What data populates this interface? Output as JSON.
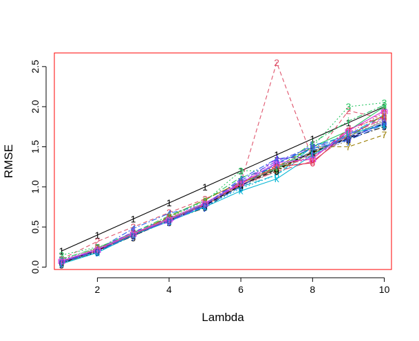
{
  "chart_data": {
    "type": "line",
    "title": "",
    "xlabel": "Lambda",
    "ylabel": "RMSE",
    "xlim": [
      0.8,
      10.2
    ],
    "ylim": [
      -0.03,
      2.67
    ],
    "xticks": [
      2,
      4,
      6,
      8,
      10
    ],
    "yticks": [
      0.0,
      0.5,
      1.0,
      1.5,
      2.0,
      2.5
    ],
    "xtick_labels": [
      "2",
      "4",
      "6",
      "8",
      "10"
    ],
    "ytick_labels": [
      "0.0",
      "0.5",
      "1.0",
      "1.5",
      "2.0",
      "2.5"
    ],
    "frame_color": "#ff0000",
    "grid": false,
    "legend": "none",
    "x": [
      1,
      2,
      3,
      4,
      5,
      6,
      7,
      8,
      9,
      10
    ],
    "series": [
      {
        "marker": "1",
        "color": "#000000",
        "dash": "",
        "values": [
          0.2,
          0.4,
          0.6,
          0.8,
          1.0,
          1.2,
          1.4,
          1.6,
          1.8,
          2.0
        ]
      },
      {
        "marker": "2",
        "color": "#df536b",
        "dash": "6,4",
        "values": [
          0.1,
          0.32,
          0.5,
          0.68,
          0.85,
          1.05,
          2.55,
          1.35,
          1.95,
          1.85
        ]
      },
      {
        "marker": "3",
        "color": "#22c55e",
        "dash": "2,3",
        "values": [
          0.15,
          0.25,
          0.4,
          0.62,
          0.82,
          1.2,
          1.2,
          1.5,
          2.0,
          2.05
        ]
      },
      {
        "marker": "4",
        "color": "#2563eb",
        "dash": "8,3,2,3",
        "values": [
          0.08,
          0.22,
          0.48,
          0.67,
          0.78,
          1.1,
          1.35,
          1.4,
          1.6,
          1.8
        ]
      },
      {
        "marker": "5",
        "color": "#06b6d4",
        "dash": "12,4",
        "values": [
          0.05,
          0.18,
          0.42,
          0.6,
          0.8,
          1.0,
          1.15,
          1.5,
          1.65,
          1.9
        ]
      },
      {
        "marker": "6",
        "color": "#e11d48",
        "dash": "",
        "values": [
          0.06,
          0.2,
          0.41,
          0.6,
          0.77,
          1.02,
          1.25,
          1.3,
          1.7,
          1.95
        ]
      },
      {
        "marker": "7",
        "color": "#9a7d00",
        "dash": "6,4",
        "values": [
          0.04,
          0.23,
          0.4,
          0.62,
          0.76,
          1.05,
          1.25,
          1.5,
          1.5,
          1.65
        ]
      },
      {
        "marker": "8",
        "color": "#808080",
        "dash": "2,3",
        "values": [
          0.09,
          0.24,
          0.43,
          0.58,
          0.8,
          1.0,
          1.2,
          1.4,
          1.58,
          1.85
        ]
      },
      {
        "marker": "9",
        "color": "#000000",
        "dash": "8,3,2,3",
        "values": [
          0.05,
          0.19,
          0.39,
          0.58,
          0.74,
          1.02,
          1.2,
          1.45,
          1.6,
          1.75
        ]
      },
      {
        "marker": "0",
        "color": "#df536b",
        "dash": "12,4",
        "values": [
          0.04,
          0.2,
          0.4,
          0.59,
          0.78,
          1.03,
          1.19,
          1.32,
          1.65,
          1.85
        ]
      },
      {
        "marker": "a",
        "color": "#22c55e",
        "dash": "",
        "values": [
          0.07,
          0.22,
          0.42,
          0.6,
          0.8,
          1.05,
          1.22,
          1.5,
          1.7,
          2.0
        ]
      },
      {
        "marker": "b",
        "color": "#2563eb",
        "dash": "6,4",
        "values": [
          0.08,
          0.21,
          0.44,
          0.61,
          0.77,
          1.06,
          1.28,
          1.52,
          1.62,
          1.8
        ]
      },
      {
        "marker": "c",
        "color": "#06b6d4",
        "dash": "2,3",
        "values": [
          0.05,
          0.19,
          0.41,
          0.57,
          0.76,
          0.98,
          1.15,
          1.45,
          1.68,
          1.78
        ]
      },
      {
        "marker": "d",
        "color": "#e11d48",
        "dash": "8,3,2,3",
        "values": [
          0.06,
          0.21,
          0.42,
          0.6,
          0.78,
          1.04,
          1.27,
          1.35,
          1.72,
          1.88
        ]
      },
      {
        "marker": "e",
        "color": "#9a7d00",
        "dash": "12,4",
        "values": [
          0.07,
          0.23,
          0.41,
          0.63,
          0.84,
          1.06,
          1.21,
          1.42,
          1.62,
          1.9
        ]
      },
      {
        "marker": "f",
        "color": "#808080",
        "dash": "",
        "values": [
          0.06,
          0.22,
          0.4,
          0.59,
          0.79,
          1.01,
          1.24,
          1.44,
          1.63,
          1.82
        ]
      },
      {
        "marker": "g",
        "color": "#000000",
        "dash": "6,4",
        "values": [
          0.05,
          0.21,
          0.39,
          0.58,
          0.77,
          1.02,
          1.22,
          1.43,
          1.61,
          1.79
        ]
      },
      {
        "marker": "h",
        "color": "#df536b",
        "dash": "2,3",
        "values": [
          0.07,
          0.23,
          0.42,
          0.61,
          0.8,
          1.05,
          1.26,
          1.37,
          1.67,
          1.93
        ]
      },
      {
        "marker": "i",
        "color": "#22c55e",
        "dash": "8,3,2,3",
        "values": [
          0.1,
          0.24,
          0.43,
          0.64,
          0.83,
          1.12,
          1.23,
          1.55,
          1.82,
          2.02
        ]
      },
      {
        "marker": "j",
        "color": "#2563eb",
        "dash": "12,4",
        "values": [
          0.06,
          0.2,
          0.4,
          0.58,
          0.76,
          1.0,
          1.3,
          1.48,
          1.58,
          1.78
        ]
      },
      {
        "marker": "k",
        "color": "#06b6d4",
        "dash": "",
        "values": [
          0.04,
          0.18,
          0.4,
          0.57,
          0.75,
          0.95,
          1.1,
          1.4,
          1.66,
          1.77
        ]
      },
      {
        "marker": "l",
        "color": "#9333ea",
        "dash": "6,4",
        "values": [
          0.06,
          0.22,
          0.44,
          0.56,
          0.78,
          1.04,
          1.35,
          1.38,
          1.65,
          1.87
        ]
      },
      {
        "marker": "m",
        "color": "#d946ef",
        "dash": "",
        "values": [
          0.08,
          0.22,
          0.42,
          0.6,
          0.8,
          1.05,
          1.3,
          1.35,
          1.7,
          1.95
        ]
      },
      {
        "marker": "n",
        "color": "#4f46e5",
        "dash": "8,3,2,3",
        "values": [
          0.07,
          0.2,
          0.4,
          0.58,
          0.78,
          1.08,
          1.32,
          1.5,
          1.6,
          1.8
        ]
      }
    ]
  }
}
